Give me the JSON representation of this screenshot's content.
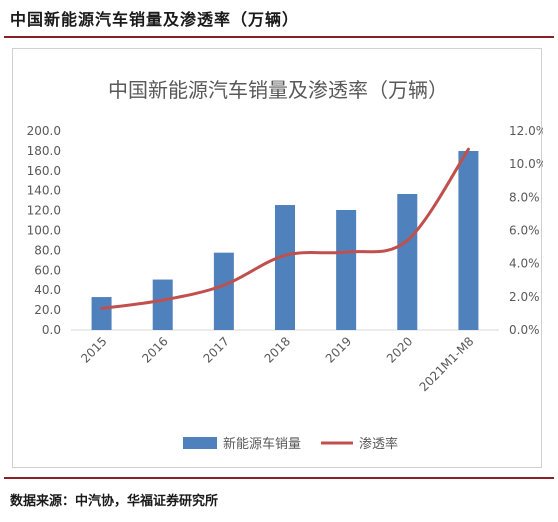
{
  "header": {
    "title": "中国新能源汽车销量及渗透率（万辆）",
    "source": "数据来源：中汽协，华福证券研究所"
  },
  "colors": {
    "bar": "#4f81bd",
    "line": "#c0504d",
    "rule": "#8a1f24"
  },
  "chart_data": {
    "type": "bar",
    "title": "中国新能源汽车销量及渗透率（万辆）",
    "categories": [
      "2015",
      "2016",
      "2017",
      "2018",
      "2019",
      "2020",
      "2021M1-M8"
    ],
    "series": [
      {
        "name": "新能源车销量",
        "type": "bar",
        "axis": "left",
        "values": [
          33.1,
          50.7,
          77.7,
          125.6,
          120.6,
          136.7,
          179.9
        ]
      },
      {
        "name": "渗透率",
        "type": "line",
        "axis": "right",
        "values": [
          1.3,
          1.8,
          2.7,
          4.5,
          4.7,
          5.4,
          10.9
        ]
      }
    ],
    "y_left": {
      "min": 0,
      "max": 200,
      "step": 20
    },
    "y_right": {
      "min": 0,
      "max": 12,
      "step": 2
    },
    "y_left_ticks": [
      "0.0",
      "20.0",
      "40.0",
      "60.0",
      "80.0",
      "100.0",
      "120.0",
      "140.0",
      "160.0",
      "180.0",
      "200.0"
    ],
    "y_right_ticks": [
      "0.0%",
      "2.0%",
      "4.0%",
      "6.0%",
      "8.0%",
      "10.0%",
      "12.0%"
    ],
    "legend_position": "bottom",
    "grid": false
  }
}
